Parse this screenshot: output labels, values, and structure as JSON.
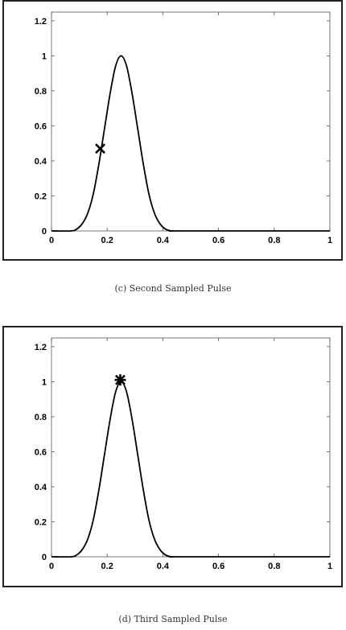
{
  "captions": {
    "c": "(c) Second Sampled Pulse",
    "d": "(d) Third Sampled Pulse"
  },
  "colors": {
    "curve": "#000000",
    "frame": "#222222",
    "marker": "#000000"
  },
  "chart_data": [
    {
      "type": "line",
      "title": "",
      "xlabel": "",
      "ylabel": "",
      "xlim": [
        0,
        1
      ],
      "ylim": [
        0,
        1.25
      ],
      "grid": false,
      "x_ticks": [
        "0",
        "0.2",
        "0.4",
        "0.6",
        "0.8",
        "1"
      ],
      "x_tick_values": [
        0,
        0.2,
        0.4,
        0.6,
        0.8,
        1
      ],
      "y_ticks": [
        "0",
        "0.2",
        "0.4",
        "0.6",
        "0.8",
        "1",
        "1.2"
      ],
      "y_tick_values": [
        0,
        0.2,
        0.4,
        0.6,
        0.8,
        1,
        1.2
      ],
      "series": [
        {
          "x": [
            0,
            0.07,
            0.09,
            0.11,
            0.13,
            0.15,
            0.17,
            0.19,
            0.21,
            0.23,
            0.25,
            0.27,
            0.29,
            0.31,
            0.33,
            0.35,
            0.37,
            0.39,
            0.41,
            0.43,
            0.45,
            0.72,
            0.74,
            1
          ],
          "y": [
            0,
            0,
            0.01,
            0.04,
            0.1,
            0.21,
            0.38,
            0.58,
            0.78,
            0.94,
            1,
            0.94,
            0.78,
            0.58,
            0.38,
            0.21,
            0.1,
            0.04,
            0.01,
            0,
            0,
            0,
            0,
            0
          ]
        }
      ],
      "marker": {
        "symbol": "x",
        "x": 0.175,
        "y": 0.47
      }
    },
    {
      "type": "line",
      "title": "",
      "xlabel": "",
      "ylabel": "",
      "xlim": [
        0,
        1
      ],
      "ylim": [
        0,
        1.25
      ],
      "grid": false,
      "x_ticks": [
        "0",
        "0.2",
        "0.4",
        "0.6",
        "0.8",
        "1"
      ],
      "x_tick_values": [
        0,
        0.2,
        0.4,
        0.6,
        0.8,
        1
      ],
      "y_ticks": [
        "0",
        "0.2",
        "0.4",
        "0.6",
        "0.8",
        "1",
        "1.2"
      ],
      "y_tick_values": [
        0,
        0.2,
        0.4,
        0.6,
        0.8,
        1,
        1.2
      ],
      "series": [
        {
          "x": [
            0,
            0.07,
            0.09,
            0.11,
            0.13,
            0.15,
            0.17,
            0.19,
            0.21,
            0.23,
            0.25,
            0.27,
            0.29,
            0.31,
            0.33,
            0.35,
            0.37,
            0.39,
            0.41,
            0.43,
            0.45,
            0.72,
            0.74,
            1
          ],
          "y": [
            0,
            0,
            0.01,
            0.04,
            0.1,
            0.21,
            0.38,
            0.58,
            0.78,
            0.94,
            1,
            0.94,
            0.78,
            0.58,
            0.38,
            0.21,
            0.1,
            0.04,
            0.01,
            0,
            0,
            0,
            0,
            0
          ]
        }
      ],
      "marker": {
        "symbol": "asterisk",
        "x": 0.247,
        "y": 1.01
      }
    }
  ]
}
